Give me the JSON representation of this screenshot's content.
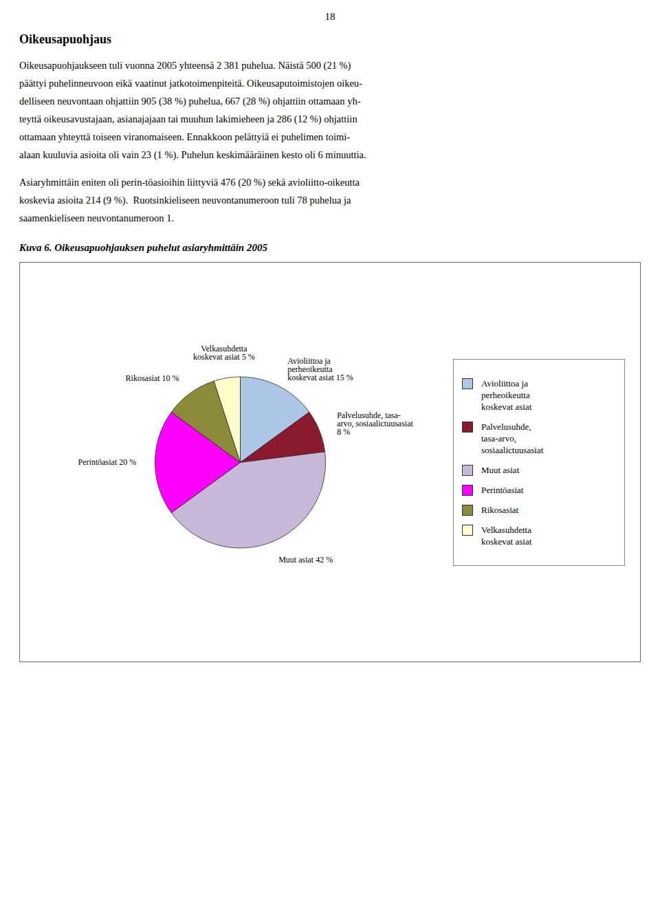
{
  "chart_data": {
    "type": "pie",
    "title": "Kuva 6.  Oikeusapuohjauksen puhelut asiaryhmittäin 2005",
    "annotations": [
      [
        "18"
      ],
      [
        "Oikeusapuohjaus"
      ],
      [
        "Oikeusapuohjaukseen tuli vuonna 2005 yhteensä 2 381 puhelua. Näistä 500 (21 %)",
        "päättyi puhelinneuvoon eikä vaatinut jatkotoimenpiteitä. Oikeusaputoimistojen oikeu-",
        "delliseen neuvontaan ohjattiin 905 (38 %) puhelua, 667 (28 %) ohjattiin ottamaan yh-",
        "teyttä oikeusavustajaan, asianajajaan tai muuhun lakimieheen ja 286 (12 %) ohjattiin",
        "ottamaan yhteyttä toiseen viranomaiseen. Ennakkoon pelättyiä ei puhelimen toimi-",
        "alaan kuuluvia asioita oli vain 23 (1 %). Puhelun keskimääräinen kesto oli 6 minuuttia."
      ],
      [
        "Asiaryhmittäin eniten oli perin-töasioihin liittyviä 476 (20 %) sekä avioliitto-oikeutta",
        "koskevia asioita 214 (9 %).  Ruotsinkieliseen neuvontanumeroon tuli 78 puhelua ja",
        "saamenkieliseen neuvontanumeroon 1."
      ]
    ],
    "categories": [
      "Avioliittoa ja\nperheoikeutta\nkoskevat asiat",
      "Palvelusuhde,\ntasa-arvo,\nsosiaalictuusasiat",
      "Muut asiat",
      "Perintöasiat",
      "Rikosasiat",
      "Velkasuhdetta\nkoskevat asiat"
    ],
    "values": [
      15,
      8,
      42,
      20,
      10,
      5
    ],
    "value_labels": [
      "Avioliittoa ja\nperheoikeutta\nkoskevat asiat 15 %",
      "Palvelusuhde, tasa-\narvo, sosiaalictuusasiat\n8 %",
      "Muut asiat 42 %",
      "Perintöasiat 20 %",
      "Rikosasiat 10 %",
      "Velkasuhdetta\nkoskevat asiat 5 %"
    ],
    "colors": [
      "#adc6e8",
      "#8b1a2e",
      "#c8b8d8",
      "#ff00ff",
      "#8b8b3a",
      "#ffffcc"
    ],
    "data_labels": true,
    "legend": "right"
  }
}
